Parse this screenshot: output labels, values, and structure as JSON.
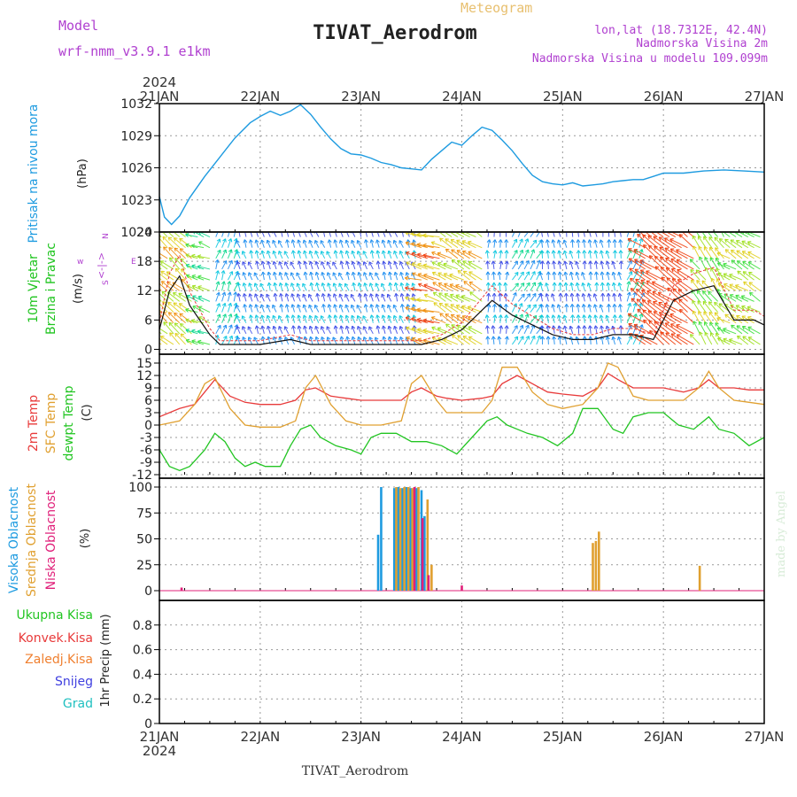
{
  "header": {
    "model_label": "Model",
    "model_name": "wrf-nmm_v3.9.1  e1km",
    "meteogram_label": "Meteogram",
    "station_title": "TIVAT_Aerodrom",
    "lonlat": "lon,lat (18.7312E, 42.4N)",
    "elevation": "Nadmorska Visina 2m",
    "model_elevation": "Nadmorska Visina u modelu 109.099m",
    "year_top": "2024",
    "year_bottom": "2024",
    "footer_station": "TIVAT_Aerodrom",
    "credit": "made by Angel"
  },
  "colors": {
    "pressure": "#1e9be0",
    "wind_label": "#1fc41f",
    "temp2m": "#e83a3a",
    "sfc_temp": "#e0a030",
    "dewpoint": "#22c522",
    "cloud_high": "#1e9be0",
    "cloud_mid": "#e0a030",
    "cloud_low": "#e0207a",
    "header_violet": "#b040d0",
    "meteogram_gold": "#e8c070",
    "precip_total": "#22c522",
    "precip_conv": "#e83a3a",
    "precip_frozen": "#f08030",
    "precip_snow": "#4040e0",
    "precip_graupel": "#20c0c0"
  },
  "chart_data": [
    {
      "panel": "pressure",
      "type": "line",
      "x_ticks": [
        "21JAN",
        "22JAN",
        "23JAN",
        "24JAN",
        "25JAN",
        "26JAN",
        "27JAN"
      ],
      "ylabel": "Pritisak na nivou mora",
      "unit": "(hPa)",
      "ylim": [
        1020,
        1032
      ],
      "y_ticks": [
        1020,
        1023,
        1026,
        1029,
        1032
      ],
      "grid": true,
      "series": [
        {
          "x": [
            0,
            0.05,
            0.12,
            0.2,
            0.3,
            0.45,
            0.6,
            0.75,
            0.9,
            1.0,
            1.1,
            1.2,
            1.3,
            1.4,
            1.5,
            1.6,
            1.7,
            1.8,
            1.9,
            2.0,
            2.1,
            2.2,
            2.3,
            2.4,
            2.5,
            2.6,
            2.7,
            2.8,
            2.9,
            3.0,
            3.1,
            3.2,
            3.3,
            3.4,
            3.5,
            3.6,
            3.7,
            3.8,
            3.9,
            4.0,
            4.1,
            4.2,
            4.3,
            4.4,
            4.5,
            4.6,
            4.7,
            4.8,
            4.9,
            5.0,
            5.2,
            5.4,
            5.6,
            5.8,
            6.0
          ],
          "y": [
            1023.3,
            1021.4,
            1020.7,
            1021.5,
            1023.2,
            1025.2,
            1027.0,
            1028.8,
            1030.2,
            1030.8,
            1031.3,
            1030.9,
            1031.3,
            1031.9,
            1031.0,
            1029.8,
            1028.7,
            1027.8,
            1027.3,
            1027.2,
            1026.9,
            1026.5,
            1026.3,
            1026.0,
            1025.9,
            1025.8,
            1026.8,
            1027.6,
            1028.4,
            1028.1,
            1029.0,
            1029.8,
            1029.5,
            1028.6,
            1027.6,
            1026.4,
            1025.3,
            1024.7,
            1024.5,
            1024.4,
            1024.6,
            1024.3,
            1024.4,
            1024.5,
            1024.7,
            1024.8,
            1024.9,
            1024.9,
            1025.2,
            1025.5,
            1025.5,
            1025.7,
            1025.8,
            1025.7,
            1025.6
          ]
        }
      ]
    },
    {
      "panel": "wind",
      "type": "line",
      "ylabel": "10m Vjetar Brzina i Pravac",
      "unit": "(m/s)",
      "ylim": [
        -1,
        24
      ],
      "y_ticks": [
        0,
        6,
        12,
        18,
        24
      ],
      "direction_key": [
        "w",
        "<-|->",
        "E",
        "S",
        "N"
      ],
      "grid": true,
      "series": [
        {
          "x": [
            0,
            0.1,
            0.2,
            0.3,
            0.4,
            0.5,
            0.6,
            0.8,
            1.0,
            1.3,
            1.5,
            1.8,
            2.0,
            2.3,
            2.6,
            2.8,
            3.0,
            3.2,
            3.3,
            3.5,
            3.7,
            3.9,
            4.1,
            4.3,
            4.5,
            4.7,
            4.9,
            5.1,
            5.3,
            5.5,
            5.7,
            5.9,
            6.0
          ],
          "y": [
            4,
            12,
            15,
            9,
            6,
            3,
            1,
            1,
            1,
            2,
            1,
            1,
            1,
            1,
            1,
            2,
            4,
            8,
            10,
            7,
            5,
            3,
            2,
            2,
            3,
            3,
            2,
            10,
            12,
            13,
            6,
            6,
            5
          ]
        }
      ]
    },
    {
      "panel": "temperature",
      "type": "line",
      "ylabel": [
        "2m Temp",
        "SFC Temp",
        "dewpt Temp"
      ],
      "unit": "(C)",
      "ylim": [
        -12,
        15
      ],
      "y_ticks": [
        -12,
        -9,
        -6,
        -3,
        0,
        3,
        6,
        9,
        12,
        15
      ],
      "grid": true,
      "series": [
        {
          "name": "2m Temp",
          "x": [
            0,
            0.2,
            0.35,
            0.45,
            0.55,
            0.7,
            0.85,
            1.0,
            1.2,
            1.35,
            1.45,
            1.55,
            1.7,
            1.85,
            2.0,
            2.2,
            2.4,
            2.5,
            2.6,
            2.75,
            2.85,
            3.0,
            3.2,
            3.3,
            3.4,
            3.55,
            3.7,
            3.85,
            4.0,
            4.2,
            4.35,
            4.45,
            4.55,
            4.7,
            4.85,
            5.0,
            5.2,
            5.35,
            5.45,
            5.55,
            5.7,
            5.85,
            6.0
          ],
          "y": [
            2,
            4,
            5,
            8,
            11,
            7,
            5.5,
            5,
            5,
            6,
            8.5,
            9,
            7,
            6.5,
            6,
            6,
            6,
            8,
            9,
            7,
            6.5,
            6,
            6.5,
            7,
            10,
            12,
            10,
            8,
            7.5,
            7,
            9,
            12.5,
            11,
            9,
            9,
            9,
            8,
            9,
            11,
            9,
            9,
            8.5,
            8.5
          ]
        },
        {
          "name": "SFC Temp",
          "x": [
            0,
            0.2,
            0.35,
            0.45,
            0.55,
            0.7,
            0.85,
            1.0,
            1.2,
            1.35,
            1.45,
            1.55,
            1.7,
            1.85,
            2.0,
            2.2,
            2.4,
            2.5,
            2.6,
            2.75,
            2.85,
            3.0,
            3.2,
            3.3,
            3.4,
            3.55,
            3.7,
            3.85,
            4.0,
            4.2,
            4.35,
            4.45,
            4.55,
            4.7,
            4.85,
            5.0,
            5.2,
            5.35,
            5.45,
            5.55,
            5.7,
            5.85,
            6.0
          ],
          "y": [
            0,
            1,
            5,
            10,
            11.5,
            4,
            0,
            -0.5,
            -0.5,
            1,
            9,
            12,
            5,
            1,
            0,
            0,
            1,
            10,
            12,
            6,
            3,
            3,
            3,
            6,
            14,
            14,
            8,
            5,
            4,
            5,
            9,
            15,
            14,
            7,
            6,
            6,
            6,
            9,
            13,
            9,
            6,
            5.5,
            5
          ]
        },
        {
          "name": "dewpt Temp",
          "x": [
            0,
            0.1,
            0.2,
            0.3,
            0.45,
            0.55,
            0.65,
            0.75,
            0.85,
            0.95,
            1.05,
            1.2,
            1.3,
            1.4,
            1.5,
            1.6,
            1.75,
            1.9,
            2.0,
            2.1,
            2.2,
            2.35,
            2.5,
            2.65,
            2.8,
            2.95,
            3.1,
            3.25,
            3.35,
            3.45,
            3.55,
            3.65,
            3.8,
            3.95,
            4.1,
            4.2,
            4.35,
            4.5,
            4.6,
            4.7,
            4.85,
            5.0,
            5.15,
            5.3,
            5.45,
            5.55,
            5.7,
            5.85,
            6.0
          ],
          "y": [
            -6,
            -10,
            -11,
            -10,
            -6,
            -2,
            -4,
            -8,
            -10,
            -9,
            -10,
            -10,
            -5,
            -1,
            0,
            -3,
            -5,
            -6,
            -7,
            -3,
            -2,
            -2,
            -4,
            -4,
            -5,
            -7,
            -3,
            1,
            2,
            0,
            -1,
            -2,
            -3,
            -5,
            -2,
            4,
            4,
            -1,
            -2,
            2,
            3,
            3,
            0,
            -1,
            2,
            -1,
            -2,
            -5,
            -3
          ]
        }
      ]
    },
    {
      "panel": "clouds",
      "type": "bar",
      "ylabel": [
        "Visoka Oblacnost",
        "Srednja Oblacnost",
        "Niska Oblacnost"
      ],
      "unit": "(%)",
      "ylim": [
        0,
        100
      ],
      "y_ticks": [
        0,
        25,
        50,
        75,
        100
      ],
      "grid": true,
      "series": [
        {
          "name": "Visoka Oblacnost",
          "x": [
            2.17,
            2.2,
            2.33,
            2.37,
            2.41,
            2.45,
            2.49,
            2.55,
            2.6,
            2.63
          ],
          "y": [
            54,
            100,
            99,
            100,
            99,
            100,
            99,
            99,
            97,
            72
          ]
        },
        {
          "name": "Srednja Oblacnost",
          "x": [
            2.35,
            2.39,
            2.43,
            2.47,
            2.51,
            2.57,
            2.66,
            2.7,
            4.3,
            4.33,
            4.36,
            5.36
          ],
          "y": [
            100,
            99,
            100,
            100,
            99,
            100,
            88,
            25,
            46,
            48,
            57,
            24
          ]
        },
        {
          "name": "Niska Oblacnost",
          "x": [
            0.22,
            2.53,
            2.61,
            2.67,
            3.0
          ],
          "y": [
            3,
            100,
            70,
            15,
            5
          ]
        }
      ]
    },
    {
      "panel": "precipitation",
      "type": "bar",
      "ylabel": "1hr Precip (mm)",
      "ylim": [
        0,
        1
      ],
      "y_ticks": [
        0,
        0.2,
        0.4,
        0.6,
        0.8
      ],
      "grid": true,
      "legend": [
        "Ukupna Kisa",
        "Konvek.Kisa",
        "Zaledj.Kisa",
        "Snijeg",
        "Grad"
      ],
      "series": []
    }
  ]
}
